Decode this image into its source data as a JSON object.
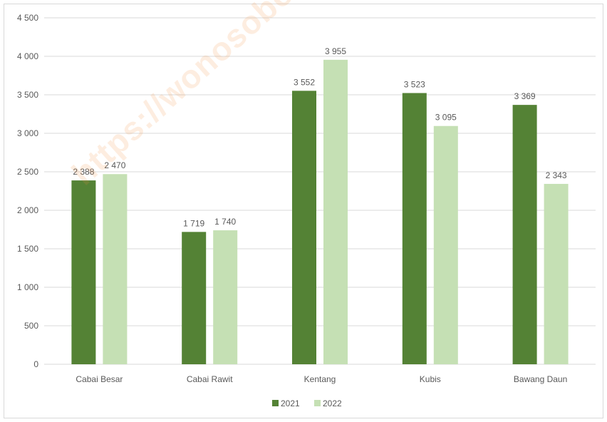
{
  "watermark": "https://wonosobokab.bps.go.id",
  "colors": {
    "series_2021": "#548235",
    "series_2022": "#c5e0b4",
    "grid": "#d9d9d9",
    "text": "#595959"
  },
  "chart_data": {
    "type": "bar",
    "categories": [
      "Cabai Besar",
      "Cabai Rawit",
      "Kentang",
      "Kubis",
      "Bawang Daun"
    ],
    "series": [
      {
        "name": "2021",
        "values": [
          2388,
          1719,
          3552,
          3523,
          3369
        ],
        "labels": [
          "2 388",
          "1 719",
          "3 552",
          "3 523",
          "3 369"
        ]
      },
      {
        "name": "2022",
        "values": [
          2470,
          1740,
          3955,
          3095,
          2343
        ],
        "labels": [
          "2 470",
          "1 740",
          "3 955",
          "3 095",
          "2 343"
        ]
      }
    ],
    "ylim": [
      0,
      4500
    ],
    "yticks": [
      0,
      500,
      1000,
      1500,
      2000,
      2500,
      3000,
      3500,
      4000,
      4500
    ],
    "ytick_labels": [
      "0",
      "500",
      "1 000",
      "1 500",
      "2 000",
      "2 500",
      "3 000",
      "3 500",
      "4 000",
      "4 500"
    ],
    "title": "",
    "xlabel": "",
    "ylabel": "",
    "grid": true,
    "legend_position": "bottom"
  }
}
